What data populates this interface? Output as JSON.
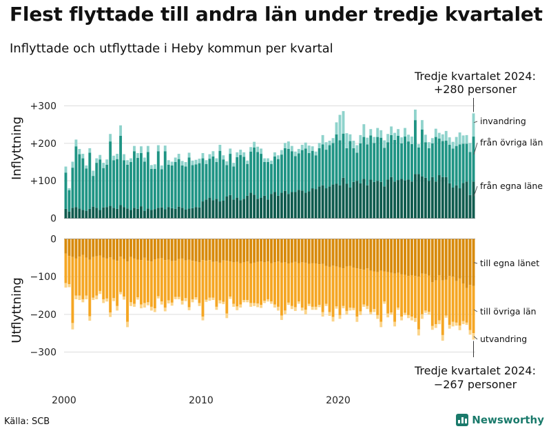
{
  "header": {
    "title": "Flest flyttade till andra län under tredje kvartalet",
    "subtitle": "Inflyttade och utflyttade i Heby kommun per kvartal"
  },
  "footer": {
    "source": "Källa: SCB",
    "brand": "Newsworthy"
  },
  "chart_data": {
    "type": "bar",
    "stacked": true,
    "x_start": {
      "year": 2000,
      "quarter": 1
    },
    "x_ticks": [
      "2000",
      "2010",
      "2020"
    ],
    "top_panel": {
      "ylabel": "Inflyttning",
      "ylim": [
        0,
        320
      ],
      "y_ticks": [
        "0",
        "+100",
        "+200",
        "+300"
      ],
      "callout": [
        "Tredje kvartalet 2024:",
        "+280 personer"
      ],
      "series": [
        {
          "name": "från egna läne",
          "color": "#0f5b4e",
          "values": [
            25,
            18,
            28,
            30,
            26,
            22,
            20,
            25,
            31,
            28,
            22,
            29,
            30,
            33,
            28,
            25,
            35,
            30,
            26,
            22,
            28,
            25,
            32,
            20,
            26,
            22,
            24,
            28,
            29,
            24,
            30,
            27,
            25,
            31,
            28,
            23,
            26,
            27,
            30,
            29,
            45,
            50,
            55,
            48,
            52,
            45,
            47,
            58,
            62,
            50,
            55,
            48,
            52,
            60,
            68,
            63,
            52,
            55,
            60,
            50,
            65,
            70,
            60,
            68,
            73,
            65,
            70,
            70,
            76,
            74,
            68,
            72,
            80,
            78,
            85,
            88,
            80,
            85,
            90,
            92,
            88,
            108,
            92,
            82,
            97,
            100,
            93,
            105,
            88,
            103,
            97,
            100,
            97,
            85,
            103,
            110,
            98,
            102,
            105,
            101,
            103,
            98,
            118,
            118,
            112,
            108,
            100,
            110,
            98,
            115,
            110,
            110,
            93,
            82,
            88,
            80,
            94,
            98,
            62,
            98
          ]
        },
        {
          "name": "från övriga län",
          "color": "#1f9484",
          "values": [
            97,
            57,
            107,
            162,
            145,
            138,
            113,
            150,
            82,
            120,
            135,
            105,
            113,
            172,
            127,
            133,
            185,
            125,
            117,
            128,
            151,
            136,
            142,
            131,
            151,
            110,
            108,
            151,
            102,
            155,
            113,
            114,
            125,
            127,
            113,
            115,
            136,
            115,
            114,
            118,
            115,
            95,
            104,
            117,
            98,
            135,
            110,
            84,
            110,
            88,
            108,
            121,
            112,
            85,
            110,
            126,
            125,
            117,
            90,
            100,
            80,
            95,
            98,
            102,
            114,
            120,
            109,
            96,
            97,
            108,
            118,
            102,
            100,
            90,
            102,
            109,
            103,
            110,
            111,
            132,
            120,
            118,
            95,
            124,
            90,
            75,
            107,
            112,
            109,
            118,
            104,
            117,
            118,
            103,
            100,
            112,
            111,
            118,
            95,
            117,
            102,
            100,
            144,
            71,
            125,
            95,
            87,
            90,
            119,
            98,
            96,
            97,
            103,
            104,
            105,
            117,
            105,
            101,
            115,
            120
          ]
        },
        {
          "name": "invandring",
          "color": "#8fd3cc",
          "values": [
            16,
            5,
            16,
            18,
            14,
            12,
            8,
            12,
            14,
            12,
            12,
            14,
            14,
            20,
            12,
            14,
            28,
            16,
            12,
            10,
            14,
            13,
            18,
            11,
            16,
            10,
            12,
            16,
            10,
            15,
            12,
            10,
            12,
            14,
            12,
            12,
            13,
            12,
            12,
            12,
            14,
            10,
            12,
            14,
            10,
            16,
            11,
            10,
            14,
            10,
            13,
            14,
            12,
            9,
            12,
            15,
            14,
            14,
            10,
            10,
            9,
            11,
            10,
            12,
            14,
            20,
            14,
            12,
            12,
            14,
            16,
            20,
            12,
            10,
            14,
            25,
            20,
            12,
            13,
            32,
            68,
            60,
            40,
            18,
            20,
            20,
            22,
            34,
            18,
            17,
            16,
            24,
            20,
            20,
            22,
            23,
            19,
            18,
            16,
            23,
            18,
            20,
            28,
            9,
            25,
            20,
            16,
            14,
            22,
            15,
            18,
            26,
            20,
            18,
            24,
            32,
            22,
            23,
            24,
            62
          ]
        }
      ]
    },
    "bottom_panel": {
      "ylabel": "Utflyttning",
      "ylim": [
        -320,
        0
      ],
      "y_ticks": [
        "0",
        "−100",
        "−200",
        "−300"
      ],
      "callout": [
        "Tredje kvartalet 2024:",
        "−267 personer"
      ],
      "series": [
        {
          "name": "till egna länet",
          "color": "#d88a0b",
          "values": [
            -39,
            -45,
            -48,
            -52,
            -47,
            -42,
            -50,
            -55,
            -48,
            -46,
            -44,
            -50,
            -52,
            -49,
            -55,
            -58,
            -47,
            -53,
            -60,
            -48,
            -52,
            -55,
            -56,
            -50,
            -58,
            -60,
            -54,
            -52,
            -51,
            -56,
            -55,
            -59,
            -58,
            -53,
            -52,
            -57,
            -55,
            -58,
            -60,
            -62,
            -56,
            -58,
            -56,
            -61,
            -60,
            -63,
            -57,
            -58,
            -60,
            -62,
            -61,
            -64,
            -62,
            -60,
            -65,
            -63,
            -61,
            -60,
            -62,
            -60,
            -64,
            -62,
            -60,
            -63,
            -62,
            -65,
            -63,
            -61,
            -64,
            -62,
            -63,
            -66,
            -64,
            -65,
            -67,
            -66,
            -72,
            -74,
            -71,
            -73,
            -75,
            -78,
            -73,
            -72,
            -76,
            -78,
            -80,
            -82,
            -78,
            -84,
            -86,
            -88,
            -84,
            -86,
            -88,
            -90,
            -92,
            -90,
            -94,
            -95,
            -98,
            -96,
            -98,
            -100,
            -92,
            -93,
            -97,
            -115,
            -110,
            -96,
            -110,
            -108,
            -98,
            -100,
            -112,
            -105,
            -118,
            -130,
            -122,
            -125
          ]
        },
        {
          "name": "till övriga län",
          "color": "#f5a623",
          "values": [
            -78,
            -75,
            -175,
            -98,
            -103,
            -118,
            -100,
            -150,
            -108,
            -104,
            -94,
            -110,
            -106,
            -146,
            -102,
            -120,
            -94,
            -100,
            -160,
            -120,
            -120,
            -100,
            -118,
            -120,
            -110,
            -120,
            -130,
            -100,
            -115,
            -126,
            -108,
            -110,
            -96,
            -101,
            -112,
            -100,
            -126,
            -102,
            -95,
            -108,
            -150,
            -103,
            -100,
            -95,
            -120,
            -100,
            -110,
            -140,
            -93,
            -110,
            -118,
            -110,
            -100,
            -102,
            -105,
            -107,
            -110,
            -115,
            -102,
            -100,
            -102,
            -112,
            -120,
            -140,
            -128,
            -104,
            -115,
            -120,
            -102,
            -120,
            -125,
            -106,
            -116,
            -115,
            -108,
            -128,
            -100,
            -120,
            -136,
            -106,
            -127,
            -100,
            -118,
            -110,
            -107,
            -128,
            -112,
            -92,
            -100,
            -110,
            -100,
            -114,
            -136,
            -80,
            -110,
            -105,
            -128,
            -92,
            -112,
            -101,
            -104,
            -110,
            -112,
            -140,
            -108,
            -97,
            -96,
            -116,
            -116,
            -120,
            -145,
            -95,
            -130,
            -120,
            -110,
            -125,
            -100,
            -92,
            -120,
            -125
          ]
        },
        {
          "name": "utvandring",
          "color": "#fbd48a",
          "values": [
            -12,
            -8,
            -17,
            -10,
            -12,
            -8,
            -10,
            -12,
            -6,
            -10,
            -8,
            -10,
            -8,
            -12,
            -8,
            -12,
            -6,
            -8,
            -14,
            -10,
            -8,
            -6,
            -10,
            -12,
            -8,
            -10,
            -10,
            -6,
            -8,
            -10,
            -8,
            -8,
            -6,
            -6,
            -10,
            -8,
            -8,
            -8,
            -6,
            -8,
            -10,
            -6,
            -8,
            -6,
            -8,
            -8,
            -6,
            -12,
            -6,
            -8,
            -10,
            -8,
            -6,
            -6,
            -10,
            -8,
            -10,
            -8,
            -6,
            -6,
            -6,
            -8,
            -10,
            -12,
            -10,
            -6,
            -8,
            -10,
            -6,
            -8,
            -12,
            -6,
            -8,
            -8,
            -6,
            -12,
            -6,
            -10,
            -12,
            -6,
            -10,
            -6,
            -10,
            -8,
            -6,
            -14,
            -10,
            -6,
            -8,
            -6,
            -8,
            -10,
            -14,
            -6,
            -10,
            -6,
            -12,
            -6,
            -10,
            -6,
            -8,
            -10,
            -10,
            -16,
            -12,
            -6,
            -8,
            -10,
            -10,
            -10,
            -15,
            -6,
            -10,
            -12,
            -8,
            -12,
            -8,
            -6,
            -12,
            -17
          ]
        }
      ]
    }
  }
}
